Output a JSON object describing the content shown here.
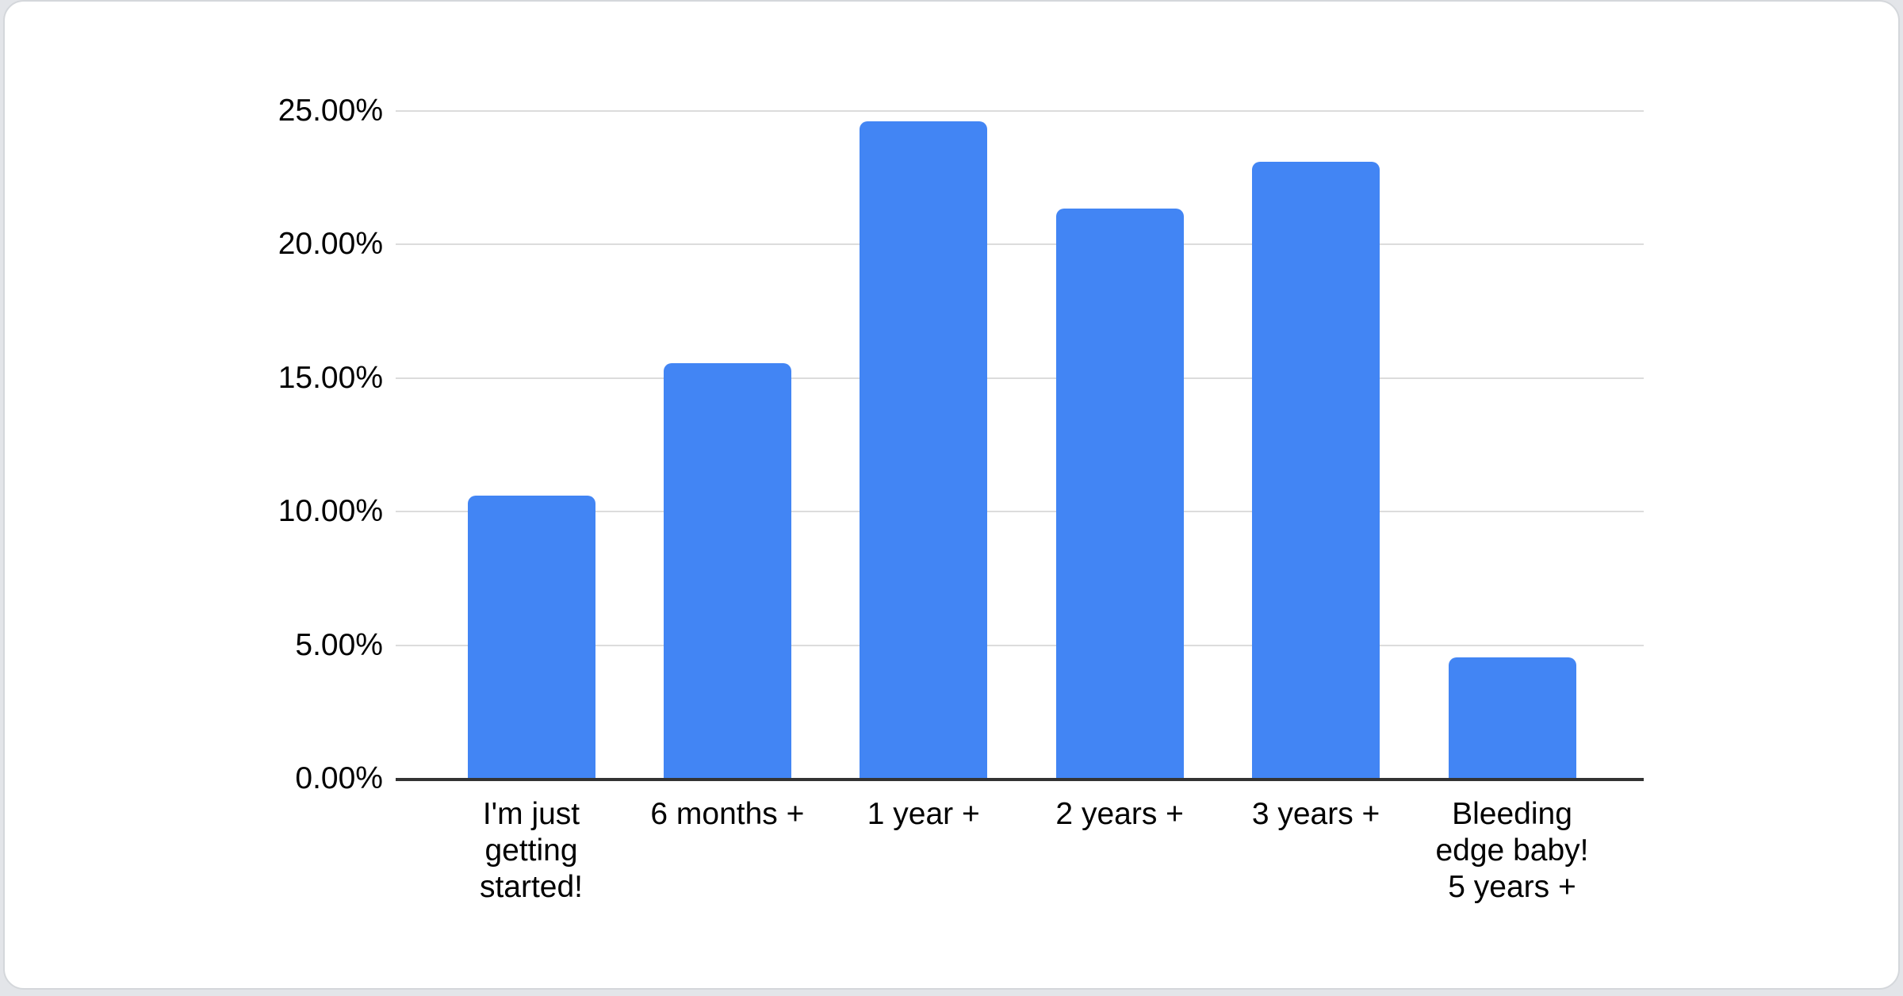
{
  "chart_data": {
    "type": "bar",
    "title": "",
    "xlabel": "",
    "ylabel": "",
    "categories": [
      "I'm just getting started!",
      "6 months +",
      "1 year +",
      "2 years +",
      "3 years +",
      "Bleeding edge baby! 5 years +"
    ],
    "category_lines": [
      [
        "I'm just",
        "getting",
        "started!"
      ],
      [
        "6 months +"
      ],
      [
        "1 year +"
      ],
      [
        "2 years +"
      ],
      [
        "3 years +"
      ],
      [
        "Bleeding",
        "edge baby!",
        "5 years +"
      ]
    ],
    "values": [
      10.6,
      15.55,
      24.6,
      21.35,
      23.1,
      4.55
    ],
    "value_unit": "%",
    "ylim": [
      0,
      25
    ],
    "y_tick_labels": [
      "0.00%",
      "5.00%",
      "10.00%",
      "15.00%",
      "20.00%",
      "25.00%"
    ],
    "grid": true,
    "legend": "none",
    "colors": {
      "bar": "#4285f4",
      "gridline": "#dcdcdc",
      "axis": "#333333",
      "text": "#000000",
      "card_background": "#ffffff",
      "page_background": "#e3e5e9"
    }
  }
}
